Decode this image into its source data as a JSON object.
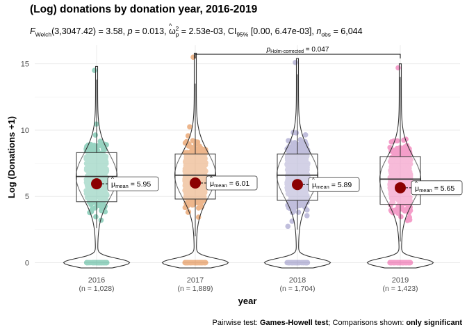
{
  "title": "(Log) donations by donation year, 2016-2019",
  "subtitle": {
    "f_label": "F",
    "f_sub": "Welch",
    "f_args": "(3,3047.42) = 3.58,",
    "p_label": "p",
    "p_value": "= 0.013,",
    "omega_label": "ω",
    "omega_sub": "p",
    "omega_sup": "2",
    "omega_value": "= 2.53e-03, CI",
    "ci_sub": "95%",
    "ci_value": "[0.00, 6.47e-03],",
    "n_label": "n",
    "n_sub": "obs",
    "n_value": "= 6,044"
  },
  "caption": {
    "prefix": "Pairwise test: ",
    "test": "Games-Howell test",
    "middle": "; Comparisons shown: ",
    "shown": "only significant"
  },
  "chart_data": {
    "type": "violin-box",
    "xlabel": "year",
    "ylabel": "Log (Donations +1)",
    "ylim": [
      -0.5,
      16.4
    ],
    "yticks": [
      0,
      5,
      10,
      15
    ],
    "groups": [
      {
        "label": "2016",
        "n_label": "(n = 1,028)",
        "color": "#1b9e77",
        "mean": 5.95,
        "mean_label": "5.95",
        "q1": 4.6,
        "median": 6.5,
        "q3": 8.3,
        "whisker_low": 2.6,
        "whisker_high": 13.8,
        "max_point": 14.5
      },
      {
        "label": "2017",
        "n_label": "(n = 1,889)",
        "color": "#d95f02",
        "mean": 6.01,
        "mean_label": "6.01",
        "q1": 4.8,
        "median": 6.6,
        "q3": 8.2,
        "whisker_low": 2.0,
        "whisker_high": 13.5,
        "max_point": 15.5
      },
      {
        "label": "2018",
        "n_label": "(n = 1,704)",
        "color": "#7570b3",
        "mean": 5.89,
        "mean_label": "5.89",
        "q1": 4.7,
        "median": 6.6,
        "q3": 8.2,
        "whisker_low": 2.5,
        "whisker_high": 14.2,
        "max_point": 15.1
      },
      {
        "label": "2019",
        "n_label": "(n = 1,423)",
        "color": "#e7298a",
        "mean": 5.65,
        "mean_label": "5.65",
        "q1": 4.4,
        "median": 6.3,
        "q3": 8.0,
        "whisker_low": 1.6,
        "whisker_high": 14.0,
        "max_point": 14.7
      }
    ],
    "mean_label_prefix": "μ",
    "mean_label_sub": "mean",
    "mean_label_eq": " = ",
    "comparisons": [
      {
        "from": "2017",
        "to": "2019",
        "p_label": "p",
        "p_sub": "Holm-corrected",
        "p_value": " = 0.047",
        "y": 16.6
      }
    ]
  }
}
